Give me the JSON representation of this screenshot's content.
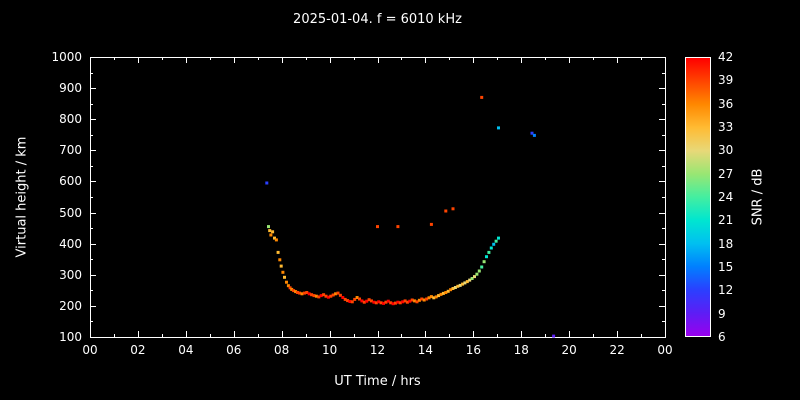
{
  "title": "2025-01-04. f = 6010 kHz",
  "axes": {
    "x_label": "UT Time / hrs",
    "y_label": "Virtual height / km",
    "x_tick_labels": [
      "00",
      "02",
      "04",
      "06",
      "08",
      "10",
      "12",
      "14",
      "16",
      "18",
      "20",
      "22",
      "00"
    ],
    "y_tick_labels": [
      "100",
      "200",
      "300",
      "400",
      "500",
      "600",
      "700",
      "800",
      "900",
      "1000"
    ]
  },
  "colorbar": {
    "label": "SNR / dB",
    "tick_labels": [
      "42",
      "39",
      "36",
      "33",
      "30",
      "27",
      "24",
      "21",
      "18",
      "15",
      "12",
      "9",
      "6"
    ],
    "color_map": {
      "42": "#ff0000",
      "39": "#ff4400",
      "36": "#ff8800",
      "33": "#ffbb33",
      "30": "#e8d878",
      "27": "#99e673",
      "24": "#44eea0",
      "21": "#00e6d0",
      "18": "#00c0f0",
      "15": "#0080ff",
      "12": "#2a40ff",
      "9": "#5c1ef5",
      "6": "#9900ee"
    }
  },
  "chart_data": {
    "type": "scatter",
    "title": "2025-01-04. f = 6010 kHz",
    "xlabel": "UT Time / hrs",
    "ylabel": "Virtual height / km",
    "colorbar_label": "SNR / dB",
    "xlim": [
      0,
      24
    ],
    "ylim": [
      100,
      1000
    ],
    "snr_range": [
      6,
      42
    ],
    "grid": false,
    "point_format": [
      "time_hrs",
      "height_km",
      "snr_db"
    ],
    "points": [
      [
        7.38,
        595,
        12
      ],
      [
        7.45,
        455,
        27
      ],
      [
        7.5,
        442,
        33
      ],
      [
        7.55,
        428,
        36
      ],
      [
        7.62,
        438,
        33
      ],
      [
        7.7,
        418,
        33
      ],
      [
        7.78,
        412,
        36
      ],
      [
        7.85,
        372,
        33
      ],
      [
        7.92,
        348,
        36
      ],
      [
        7.98,
        328,
        33
      ],
      [
        8.05,
        308,
        36
      ],
      [
        8.12,
        292,
        33
      ],
      [
        8.2,
        276,
        36
      ],
      [
        8.28,
        265,
        36
      ],
      [
        8.35,
        258,
        39
      ],
      [
        8.42,
        253,
        36
      ],
      [
        8.5,
        249,
        39
      ],
      [
        8.58,
        246,
        36
      ],
      [
        8.66,
        243,
        39
      ],
      [
        8.75,
        241,
        39
      ],
      [
        8.85,
        239,
        36
      ],
      [
        8.95,
        241,
        39
      ],
      [
        9.05,
        243,
        39
      ],
      [
        9.15,
        239,
        42
      ],
      [
        9.25,
        236,
        39
      ],
      [
        9.35,
        233,
        39
      ],
      [
        9.45,
        231,
        36
      ],
      [
        9.55,
        229,
        39
      ],
      [
        9.65,
        233,
        42
      ],
      [
        9.75,
        236,
        39
      ],
      [
        9.85,
        231,
        39
      ],
      [
        9.95,
        228,
        42
      ],
      [
        10.05,
        231,
        39
      ],
      [
        10.15,
        235,
        39
      ],
      [
        10.25,
        239,
        36
      ],
      [
        10.35,
        241,
        39
      ],
      [
        10.45,
        234,
        39
      ],
      [
        10.55,
        227,
        42
      ],
      [
        10.65,
        221,
        39
      ],
      [
        10.75,
        217,
        39
      ],
      [
        10.85,
        214,
        42
      ],
      [
        10.95,
        213,
        39
      ],
      [
        11.05,
        221,
        39
      ],
      [
        11.15,
        227,
        36
      ],
      [
        11.25,
        222,
        39
      ],
      [
        11.35,
        216,
        42
      ],
      [
        11.45,
        212,
        39
      ],
      [
        11.55,
        215,
        42
      ],
      [
        11.65,
        220,
        39
      ],
      [
        11.75,
        216,
        39
      ],
      [
        11.85,
        212,
        42
      ],
      [
        11.95,
        210,
        39
      ],
      [
        12.0,
        455,
        39
      ],
      [
        12.05,
        213,
        42
      ],
      [
        12.15,
        210,
        39
      ],
      [
        12.25,
        208,
        42
      ],
      [
        12.35,
        212,
        39
      ],
      [
        12.45,
        215,
        42
      ],
      [
        12.55,
        210,
        39
      ],
      [
        12.65,
        207,
        42
      ],
      [
        12.75,
        209,
        39
      ],
      [
        12.85,
        455,
        39
      ],
      [
        12.85,
        212,
        42
      ],
      [
        12.95,
        210,
        39
      ],
      [
        13.05,
        213,
        42
      ],
      [
        13.15,
        216,
        39
      ],
      [
        13.25,
        212,
        39
      ],
      [
        13.35,
        215,
        42
      ],
      [
        13.45,
        219,
        39
      ],
      [
        13.55,
        216,
        36
      ],
      [
        13.65,
        213,
        39
      ],
      [
        13.75,
        218,
        36
      ],
      [
        13.85,
        222,
        39
      ],
      [
        13.95,
        219,
        36
      ],
      [
        14.05,
        222,
        39
      ],
      [
        14.15,
        226,
        36
      ],
      [
        14.25,
        462,
        39
      ],
      [
        14.25,
        230,
        36
      ],
      [
        14.35,
        226,
        33
      ],
      [
        14.45,
        229,
        36
      ],
      [
        14.55,
        233,
        33
      ],
      [
        14.65,
        237,
        36
      ],
      [
        14.75,
        240,
        33
      ],
      [
        14.85,
        505,
        39
      ],
      [
        14.85,
        243,
        36
      ],
      [
        14.95,
        247,
        33
      ],
      [
        15.05,
        252,
        36
      ],
      [
        15.15,
        512,
        39
      ],
      [
        15.15,
        256,
        33
      ],
      [
        15.25,
        259,
        30
      ],
      [
        15.35,
        263,
        33
      ],
      [
        15.45,
        266,
        30
      ],
      [
        15.55,
        270,
        33
      ],
      [
        15.65,
        274,
        30
      ],
      [
        15.75,
        278,
        33
      ],
      [
        15.85,
        283,
        30
      ],
      [
        15.95,
        288,
        27
      ],
      [
        16.05,
        294,
        30
      ],
      [
        16.15,
        302,
        27
      ],
      [
        16.25,
        312,
        27
      ],
      [
        16.35,
        870,
        39
      ],
      [
        16.35,
        325,
        24
      ],
      [
        16.45,
        342,
        27
      ],
      [
        16.55,
        358,
        21
      ],
      [
        16.65,
        372,
        24
      ],
      [
        16.75,
        386,
        21
      ],
      [
        16.85,
        398,
        18
      ],
      [
        16.95,
        408,
        24
      ],
      [
        17.05,
        772,
        18
      ],
      [
        17.05,
        418,
        21
      ],
      [
        18.45,
        755,
        12
      ],
      [
        18.55,
        748,
        15
      ],
      [
        19.35,
        103,
        9
      ]
    ]
  }
}
